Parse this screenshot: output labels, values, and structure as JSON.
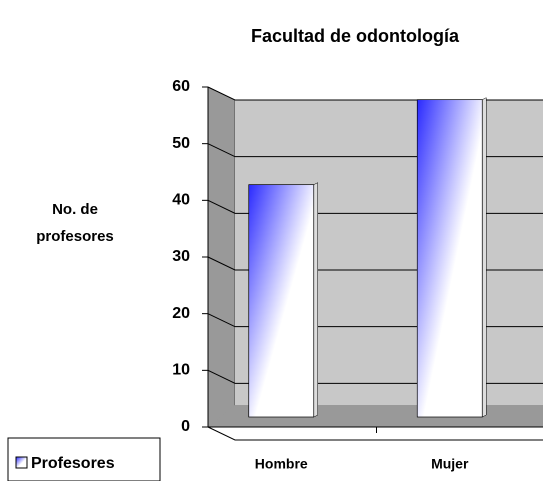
{
  "chart_data": {
    "type": "bar",
    "title": "Facultad de odontología",
    "y_label_lines": [
      "No. de",
      "profesores"
    ],
    "categories": [
      "Hombre",
      "Mujer"
    ],
    "series": [
      {
        "name": "Profesores",
        "color": "#3333ff",
        "values": [
          41,
          56
        ]
      }
    ],
    "ylim": [
      0,
      60
    ],
    "yticks": [
      0,
      10,
      20,
      30,
      40,
      50,
      60
    ],
    "grid": true,
    "legend": "bottom-left"
  }
}
